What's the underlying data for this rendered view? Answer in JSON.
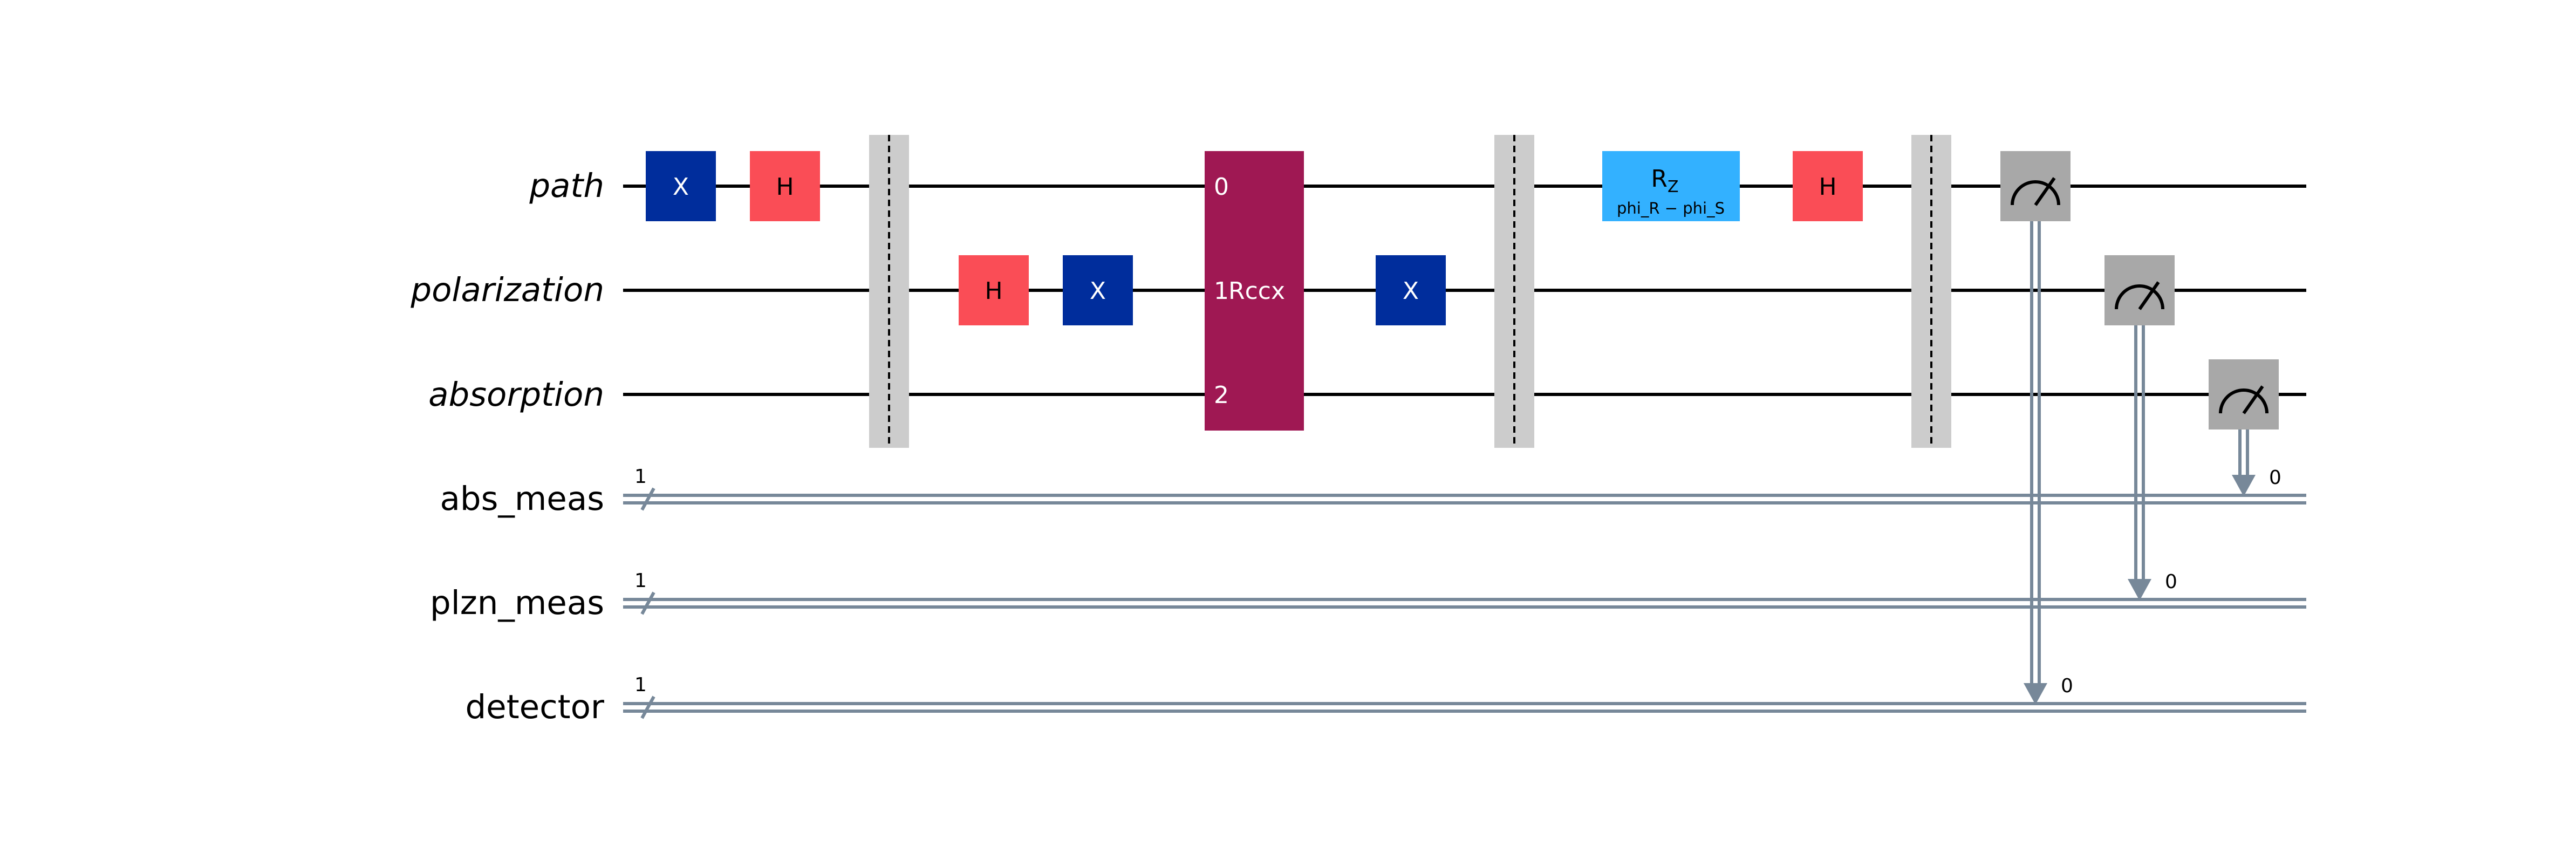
{
  "qubits": [
    {
      "name": "path"
    },
    {
      "name": "polarization"
    },
    {
      "name": "absorption"
    }
  ],
  "clbits": [
    {
      "name": "abs_meas",
      "width": "1",
      "bit": "0"
    },
    {
      "name": "plzn_meas",
      "width": "1",
      "bit": "0"
    },
    {
      "name": "detector",
      "width": "1",
      "bit": "0"
    }
  ],
  "gates": {
    "x_path": "X",
    "h_path": "H",
    "h_polarization": "H",
    "x_polarization_1": "X",
    "rccx_label": "Rccx",
    "rccx_pins": [
      "0",
      "1",
      "2"
    ],
    "x_polarization_2": "X",
    "rz_base": "R",
    "rz_sub": "Z",
    "rz_param": "phi_R − phi_S",
    "h_path_2": "H"
  },
  "colors": {
    "x_gate": "#002D9C",
    "h_gate": "#FA4D56",
    "rccx_gate": "#9F1853",
    "rz_gate": "#33B1FF",
    "barrier": "#CCCCCC",
    "measure": "#A8A8A8",
    "classical_wire": "#778899",
    "wire": "#000000"
  }
}
